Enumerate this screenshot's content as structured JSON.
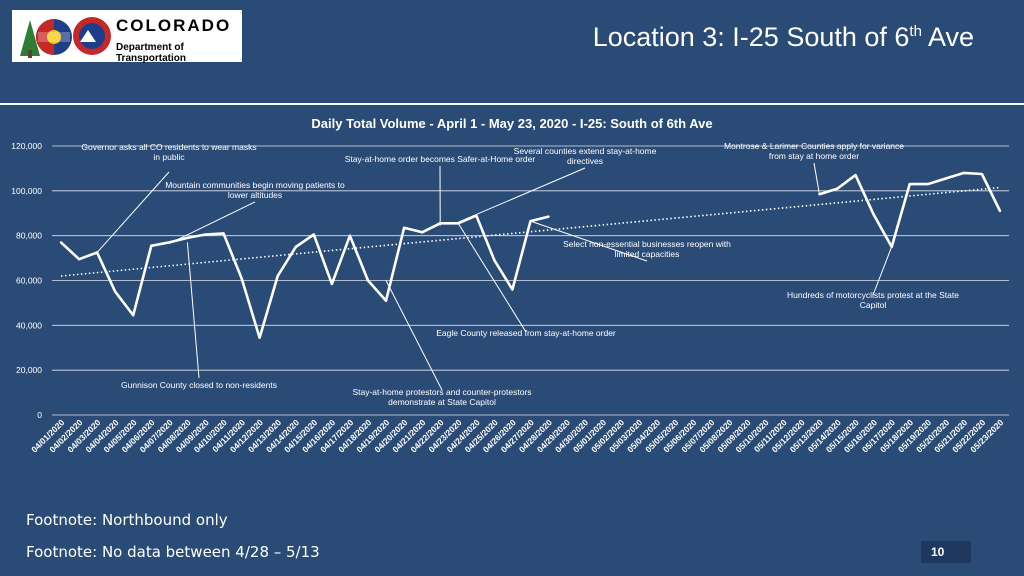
{
  "header": {
    "org_name": "COLORADO",
    "dept_name": "Department of Transportation",
    "logo_badge": "CDOT",
    "title_main": "Location 3: I-25 South of 6",
    "title_sup": "th",
    "title_end": " Ave"
  },
  "footnotes": [
    "Footnote: Northbound only",
    "Footnote: No data between 4/28 – 5/13"
  ],
  "page_number": "10",
  "colors": {
    "background": "#2B4B77",
    "line": "#FFFFFF",
    "grid": "#FFFFFF",
    "text": "#FFFFFF"
  },
  "chart_data": {
    "type": "line",
    "title": "Daily Total Volume - April 1 - May 23, 2020 - I-25: South of 6th Ave",
    "xlabel": "",
    "ylabel": "",
    "ylim": [
      0,
      120000
    ],
    "yticks": [
      "0",
      "20,000",
      "40,000",
      "60,000",
      "80,000",
      "100,000",
      "120,000"
    ],
    "ytick_values": [
      0,
      20000,
      40000,
      60000,
      80000,
      100000,
      120000
    ],
    "grid": true,
    "categories": [
      "04/01/2020",
      "04/02/2020",
      "04/03/2020",
      "04/04/2020",
      "04/05/2020",
      "04/06/2020",
      "04/07/2020",
      "04/08/2020",
      "04/09/2020",
      "04/10/2020",
      "04/11/2020",
      "04/12/2020",
      "04/13/2020",
      "04/14/2020",
      "04/15/2020",
      "04/16/2020",
      "04/17/2020",
      "04/18/2020",
      "04/19/2020",
      "04/20/2020",
      "04/21/2020",
      "04/22/2020",
      "04/23/2020",
      "04/24/2020",
      "04/25/2020",
      "04/26/2020",
      "04/27/2020",
      "04/28/2020",
      "04/29/2020",
      "04/30/2020",
      "05/01/2020",
      "05/02/2020",
      "05/03/2020",
      "05/04/2020",
      "05/05/2020",
      "05/06/2020",
      "05/07/2020",
      "05/08/2020",
      "05/09/2020",
      "05/10/2020",
      "05/11/2020",
      "05/12/2020",
      "05/13/2020",
      "05/14/2020",
      "05/15/2020",
      "05/16/2020",
      "05/17/2020",
      "05/18/2020",
      "05/19/2020",
      "05/20/2020",
      "05/21/2020",
      "05/22/2020",
      "05/23/2020"
    ],
    "segments": [
      {
        "start": 0,
        "values": [
          77000,
          69500,
          72500,
          55000,
          44500,
          75500,
          77000,
          79000,
          80500,
          81000,
          61000,
          34500,
          62000,
          75000,
          80500,
          58500,
          80000,
          60000,
          51000,
          83500,
          81500,
          85500,
          85500,
          89000,
          69000,
          56000,
          86500,
          88500
        ]
      },
      {
        "start": 42,
        "values": [
          98500,
          101000,
          107000,
          89500,
          75000,
          103000,
          103000,
          105500,
          108000,
          107500,
          91000
        ]
      }
    ],
    "trendline": {
      "style": "dotted",
      "start": 62000,
      "end": 101500
    },
    "annotations": [
      {
        "text": "Governor asks all CO residents to wear masks in public",
        "x": "04/03/2020",
        "y": 72500
      },
      {
        "text": "Mountain communities begin moving patients to lower altitudes",
        "x": "04/07/2020",
        "y": 76500
      },
      {
        "text": "Gunnison County closed to non-residents",
        "x": "04/08/2020",
        "y": 77000
      },
      {
        "text": "Stay-at-home order becomes Safer-at-Home order",
        "x": "04/22/2020",
        "y": 84500
      },
      {
        "text": "Several counties extend stay-at-home directives",
        "x": "04/23/2020",
        "y": 86000
      },
      {
        "text": "Stay-at-home protestors and counter-protestors demonstrate at State Capitol",
        "x": "04/19/2020",
        "y": 60000
      },
      {
        "text": "Eagle County released from stay-at-home order",
        "x": "04/23/2020",
        "y": 85500
      },
      {
        "text": "Select non-essential businesses reopen with limited capacities",
        "x": "04/27/2020",
        "y": 86500
      },
      {
        "text": "Montrose & Larimer Counties apply for variance from stay at home order",
        "x": "05/13/2020",
        "y": 98500
      },
      {
        "text": "Hundreds of motorcyclists protest at the State Capitol",
        "x": "05/17/2020",
        "y": 75000
      }
    ]
  }
}
